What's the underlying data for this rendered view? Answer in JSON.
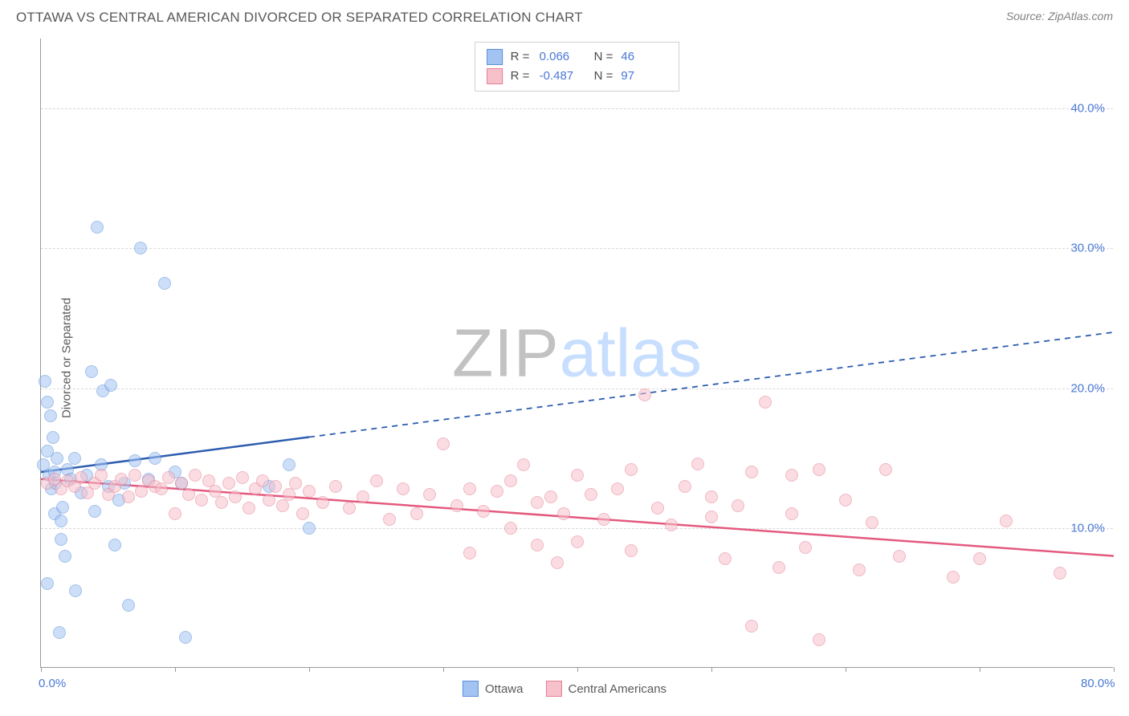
{
  "title": "OTTAWA VS CENTRAL AMERICAN DIVORCED OR SEPARATED CORRELATION CHART",
  "source": "Source: ZipAtlas.com",
  "watermark": {
    "part1": "ZIP",
    "part2": "atlas"
  },
  "ylabel": "Divorced or Separated",
  "chart": {
    "type": "scatter",
    "background_color": "#ffffff",
    "grid_color": "#d8d8d8",
    "axis_color": "#9a9a9a",
    "xlim": [
      0,
      80
    ],
    "ylim": [
      0,
      45
    ],
    "xtick_positions": [
      0,
      10,
      20,
      30,
      40,
      50,
      60,
      70,
      80
    ],
    "xtick_labels": {
      "0": "0.0%",
      "80": "80.0%"
    },
    "ytick_positions": [
      10,
      20,
      30,
      40
    ],
    "ytick_labels": {
      "10": "10.0%",
      "20": "20.0%",
      "30": "30.0%",
      "40": "40.0%"
    },
    "marker_radius": 8,
    "marker_opacity": 0.55,
    "series": [
      {
        "name": "Ottawa",
        "color_fill": "#a3c4f3",
        "color_stroke": "#5a8fd8",
        "line_color": "#2e5db0",
        "r_label": "R =",
        "r_value": "0.066",
        "n_label": "N =",
        "n_value": "46",
        "trend": {
          "solid_from": [
            0,
            14
          ],
          "solid_to": [
            20,
            16.5
          ],
          "dash_to": [
            80,
            24
          ]
        },
        "points": [
          [
            0.2,
            14.5
          ],
          [
            0.3,
            20.5
          ],
          [
            0.5,
            19
          ],
          [
            0.5,
            15.5
          ],
          [
            0.6,
            13.8
          ],
          [
            0.7,
            18
          ],
          [
            0.8,
            12.8
          ],
          [
            0.9,
            16.5
          ],
          [
            1.0,
            11
          ],
          [
            1.0,
            14
          ],
          [
            1.1,
            13.2
          ],
          [
            1.2,
            15
          ],
          [
            1.5,
            10.5
          ],
          [
            1.5,
            9.2
          ],
          [
            1.6,
            11.5
          ],
          [
            1.8,
            8
          ],
          [
            2.0,
            14.2
          ],
          [
            2.2,
            13.5
          ],
          [
            2.5,
            15
          ],
          [
            2.6,
            5.5
          ],
          [
            3.0,
            12.5
          ],
          [
            3.4,
            13.8
          ],
          [
            3.8,
            21.2
          ],
          [
            4.0,
            11.2
          ],
          [
            4.2,
            31.5
          ],
          [
            4.5,
            14.5
          ],
          [
            4.6,
            19.8
          ],
          [
            5.0,
            13
          ],
          [
            5.2,
            20.2
          ],
          [
            5.5,
            8.8
          ],
          [
            5.8,
            12
          ],
          [
            6.2,
            13.2
          ],
          [
            6.5,
            4.5
          ],
          [
            7.0,
            14.8
          ],
          [
            7.4,
            30
          ],
          [
            8.0,
            13.5
          ],
          [
            8.5,
            15
          ],
          [
            9.2,
            27.5
          ],
          [
            10,
            14
          ],
          [
            10.5,
            13.2
          ],
          [
            10.8,
            2.2
          ],
          [
            17,
            13
          ],
          [
            18.5,
            14.5
          ],
          [
            20,
            10
          ],
          [
            0.5,
            6
          ],
          [
            1.4,
            2.5
          ]
        ]
      },
      {
        "name": "Central Americans",
        "color_fill": "#f6c1cb",
        "color_stroke": "#e57f95",
        "line_color": "#e45a7e",
        "r_label": "R =",
        "r_value": "-0.487",
        "n_label": "N =",
        "n_value": "97",
        "trend": {
          "solid_from": [
            0,
            13.5
          ],
          "solid_to": [
            80,
            8
          ],
          "dash_to": null
        },
        "points": [
          [
            0.5,
            13.2
          ],
          [
            1,
            13.5
          ],
          [
            1.5,
            12.8
          ],
          [
            2,
            13.4
          ],
          [
            2.5,
            13
          ],
          [
            3,
            13.6
          ],
          [
            3.5,
            12.5
          ],
          [
            4,
            13.2
          ],
          [
            4.5,
            13.8
          ],
          [
            5,
            12.4
          ],
          [
            5.5,
            13
          ],
          [
            6,
            13.5
          ],
          [
            6.5,
            12.2
          ],
          [
            7,
            13.8
          ],
          [
            7.5,
            12.6
          ],
          [
            8,
            13.4
          ],
          [
            8.5,
            13
          ],
          [
            9,
            12.8
          ],
          [
            9.5,
            13.6
          ],
          [
            10,
            11
          ],
          [
            10.5,
            13.2
          ],
          [
            11,
            12.4
          ],
          [
            11.5,
            13.8
          ],
          [
            12,
            12
          ],
          [
            12.5,
            13.4
          ],
          [
            13,
            12.6
          ],
          [
            13.5,
            11.8
          ],
          [
            14,
            13.2
          ],
          [
            14.5,
            12.2
          ],
          [
            15,
            13.6
          ],
          [
            15.5,
            11.4
          ],
          [
            16,
            12.8
          ],
          [
            16.5,
            13.4
          ],
          [
            17,
            12
          ],
          [
            17.5,
            13
          ],
          [
            18,
            11.6
          ],
          [
            18.5,
            12.4
          ],
          [
            19,
            13.2
          ],
          [
            19.5,
            11
          ],
          [
            20,
            12.6
          ],
          [
            21,
            11.8
          ],
          [
            22,
            13
          ],
          [
            23,
            11.4
          ],
          [
            24,
            12.2
          ],
          [
            25,
            13.4
          ],
          [
            26,
            10.6
          ],
          [
            27,
            12.8
          ],
          [
            28,
            11
          ],
          [
            29,
            12.4
          ],
          [
            30,
            16
          ],
          [
            31,
            11.6
          ],
          [
            32,
            8.2
          ],
          [
            32,
            12.8
          ],
          [
            33,
            11.2
          ],
          [
            34,
            12.6
          ],
          [
            35,
            10
          ],
          [
            35,
            13.4
          ],
          [
            36,
            14.5
          ],
          [
            37,
            8.8
          ],
          [
            37,
            11.8
          ],
          [
            38,
            12.2
          ],
          [
            38.5,
            7.5
          ],
          [
            39,
            11
          ],
          [
            40,
            13.8
          ],
          [
            40,
            9
          ],
          [
            41,
            12.4
          ],
          [
            42,
            10.6
          ],
          [
            43,
            12.8
          ],
          [
            44,
            14.2
          ],
          [
            44,
            8.4
          ],
          [
            45,
            19.5
          ],
          [
            46,
            11.4
          ],
          [
            47,
            10.2
          ],
          [
            48,
            13
          ],
          [
            49,
            14.6
          ],
          [
            50,
            10.8
          ],
          [
            50,
            12.2
          ],
          [
            51,
            7.8
          ],
          [
            52,
            11.6
          ],
          [
            53,
            14
          ],
          [
            54,
            19
          ],
          [
            55,
            7.2
          ],
          [
            56,
            11
          ],
          [
            56,
            13.8
          ],
          [
            57,
            8.6
          ],
          [
            58,
            14.2
          ],
          [
            60,
            12
          ],
          [
            61,
            7
          ],
          [
            62,
            10.4
          ],
          [
            63,
            14.2
          ],
          [
            64,
            8
          ],
          [
            68,
            6.5
          ],
          [
            70,
            7.8
          ],
          [
            72,
            10.5
          ],
          [
            76,
            6.8
          ],
          [
            58,
            2
          ],
          [
            53,
            3
          ]
        ]
      }
    ]
  },
  "legend_bottom": [
    {
      "label": "Ottawa",
      "fill": "#a3c4f3",
      "stroke": "#5a8fd8"
    },
    {
      "label": "Central Americans",
      "fill": "#f6c1cb",
      "stroke": "#e57f95"
    }
  ]
}
